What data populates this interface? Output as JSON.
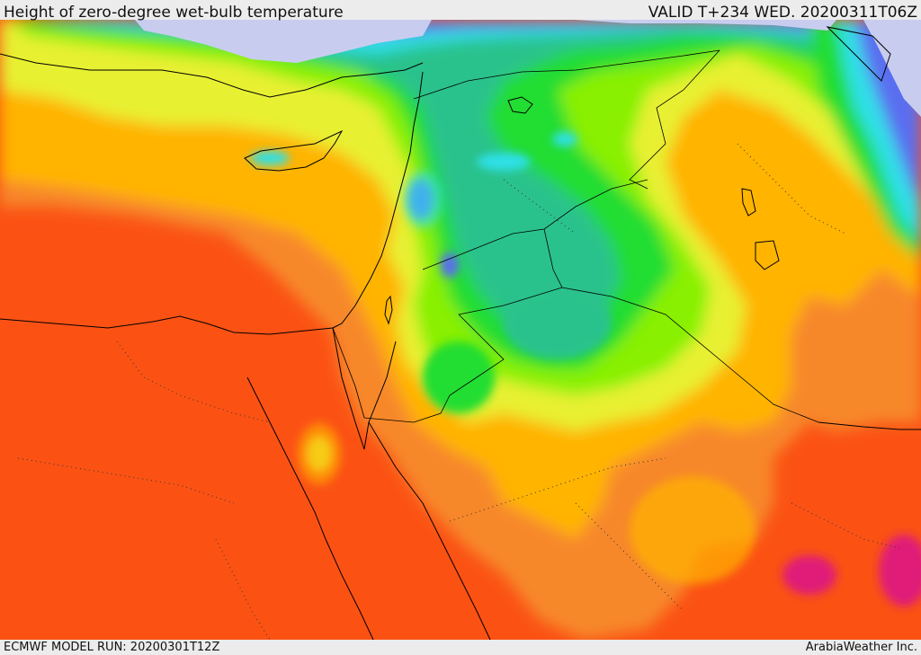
{
  "header": {
    "title": "Height of zero-degree wet-bulb temperature",
    "valid": "VALID T+234 WED. 20200311T06Z"
  },
  "footer": {
    "model_run": "ECMWF MODEL RUN: 20200301T12Z",
    "credit": "ArabiaWeather Inc."
  },
  "colors": {
    "sea_cold": "#c8cdef",
    "blue": "#5a6ef0",
    "cyan": "#2fe0e8",
    "teal": "#29c28c",
    "green": "#22dd33",
    "light_green": "#88f000",
    "yellow": "#e8f030",
    "amber": "#ffb400",
    "orange": "#f7882a",
    "red_orange": "#fb5214",
    "magenta": "#e01c78"
  }
}
